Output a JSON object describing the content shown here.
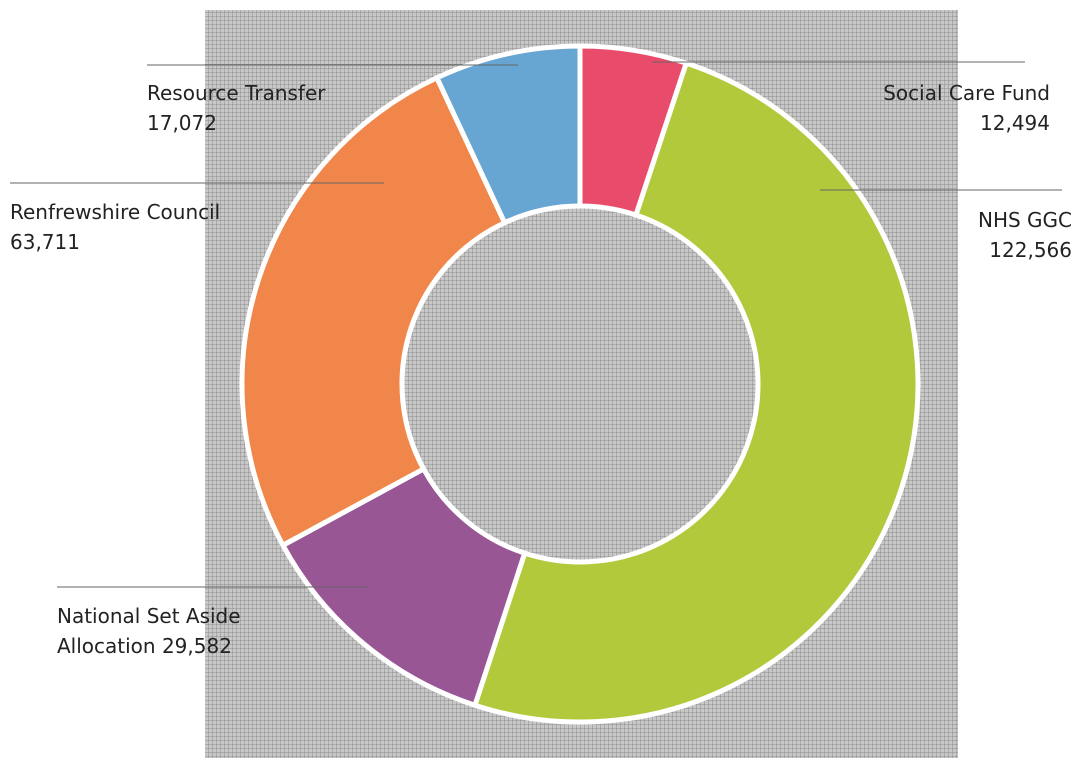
{
  "chart_data": {
    "type": "donut",
    "categories": [
      "Social Care Fund",
      "NHS GGC",
      "National Set Aside Allocation",
      "Renfrewshire Council",
      "Resource Transfer"
    ],
    "values": [
      12494,
      122566,
      29582,
      63711,
      17072
    ],
    "value_labels": [
      "12,494",
      "122,566",
      "29,582",
      "63,711",
      "17,072"
    ],
    "colors": [
      "#e84c6a",
      "#b2c93b",
      "#985794",
      "#f0864a",
      "#67a5d3"
    ]
  }
}
